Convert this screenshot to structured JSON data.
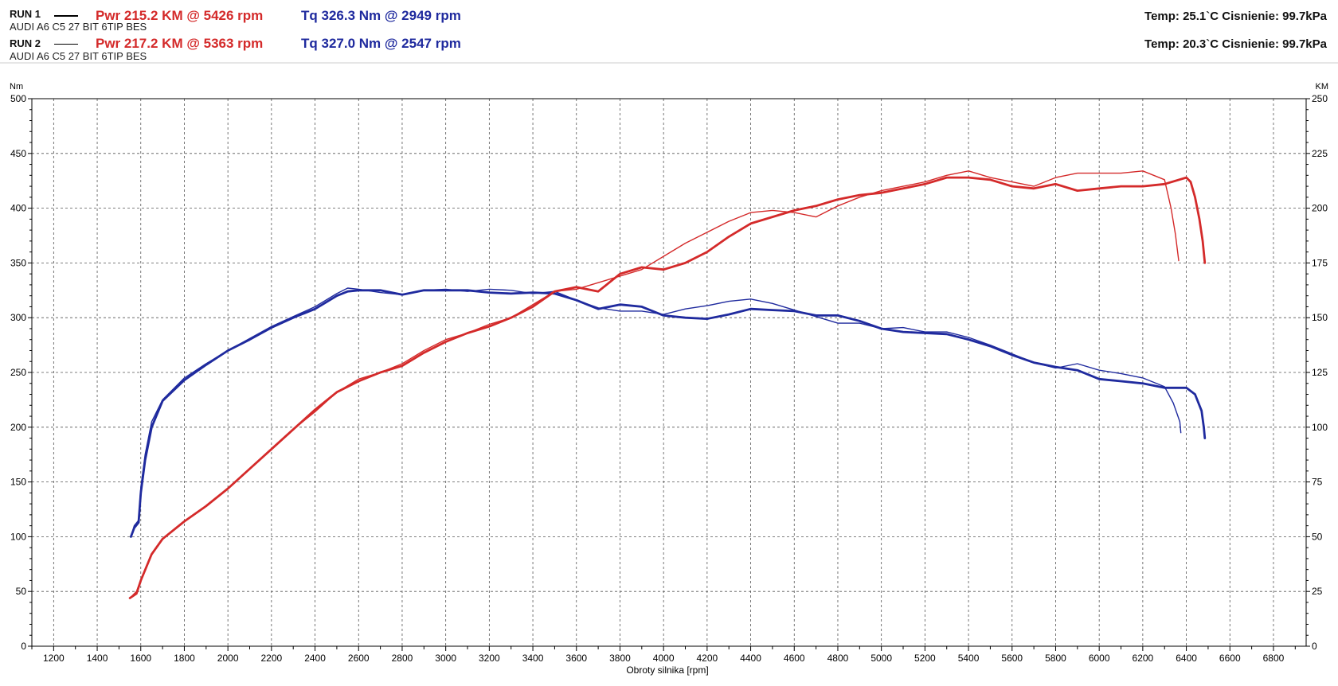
{
  "legend": {
    "run1": {
      "label": "RUN 1",
      "car": "AUDI A6 C5 27 BIT 6TIP BES",
      "power": "Pwr  215.2 KM @ 5426 rpm",
      "torque": "Tq 326.3 Nm @ 2949 rpm",
      "env": "Temp: 25.1`C   Cisnienie: 99.7kPa"
    },
    "run2": {
      "label": "RUN 2",
      "car": "AUDI A6 C5 27 BIT 6TIP BES",
      "power": "Pwr  217.2 KM @ 5363 rpm",
      "torque": "Tq 327.0 Nm @ 2547 rpm",
      "env": "Temp: 20.3`C   Cisnienie: 99.7kPa"
    }
  },
  "colors": {
    "power": "#d42a2a",
    "torque": "#1f2a9e",
    "grid": "#555555"
  },
  "chart_data": {
    "type": "line",
    "xlabel": "Obroty silnika [rpm]",
    "ylabel_left": "Nm",
    "ylabel_right": "KM",
    "xlim": [
      1100,
      6950
    ],
    "ylim_left": [
      0,
      500
    ],
    "ylim_right": [
      0,
      250
    ],
    "x_ticks": [
      1200,
      1400,
      1600,
      1800,
      2000,
      2200,
      2400,
      2600,
      2800,
      3000,
      3200,
      3400,
      3600,
      3800,
      4000,
      4200,
      4400,
      4600,
      4800,
      5000,
      5200,
      5400,
      5600,
      5800,
      6000,
      6200,
      6400,
      6600,
      6800
    ],
    "y_ticks_left": [
      0,
      50,
      100,
      150,
      200,
      250,
      300,
      350,
      400,
      450,
      500
    ],
    "y_ticks_right": [
      0,
      25,
      50,
      75,
      100,
      125,
      150,
      175,
      200,
      225,
      250
    ],
    "grid": true,
    "series": [
      {
        "name": "RUN 1",
        "quantity": "torque",
        "axis": "left",
        "points": [
          [
            1555,
            100
          ],
          [
            1570,
            110
          ],
          [
            1590,
            115
          ],
          [
            1600,
            145
          ],
          [
            1620,
            175
          ],
          [
            1650,
            205
          ],
          [
            1700,
            225
          ],
          [
            1800,
            245
          ],
          [
            1900,
            258
          ],
          [
            2000,
            270
          ],
          [
            2100,
            281
          ],
          [
            2200,
            292
          ],
          [
            2300,
            301
          ],
          [
            2400,
            310
          ],
          [
            2500,
            322
          ],
          [
            2550,
            327
          ],
          [
            2600,
            326
          ],
          [
            2700,
            323
          ],
          [
            2800,
            321
          ],
          [
            2900,
            325
          ],
          [
            3000,
            326
          ],
          [
            3100,
            324
          ],
          [
            3200,
            326
          ],
          [
            3300,
            325
          ],
          [
            3400,
            322
          ],
          [
            3500,
            324
          ],
          [
            3600,
            316
          ],
          [
            3700,
            309
          ],
          [
            3800,
            306
          ],
          [
            3900,
            306
          ],
          [
            4000,
            303
          ],
          [
            4100,
            308
          ],
          [
            4200,
            311
          ],
          [
            4300,
            315
          ],
          [
            4400,
            317
          ],
          [
            4500,
            313
          ],
          [
            4600,
            307
          ],
          [
            4700,
            301
          ],
          [
            4800,
            295
          ],
          [
            4900,
            295
          ],
          [
            5000,
            290
          ],
          [
            5100,
            291
          ],
          [
            5200,
            287
          ],
          [
            5300,
            287
          ],
          [
            5400,
            282
          ],
          [
            5500,
            275
          ],
          [
            5600,
            267
          ],
          [
            5700,
            259
          ],
          [
            5800,
            254
          ],
          [
            5900,
            258
          ],
          [
            6000,
            252
          ],
          [
            6100,
            249
          ],
          [
            6200,
            245
          ],
          [
            6300,
            237
          ],
          [
            6340,
            222
          ],
          [
            6370,
            205
          ],
          [
            6375,
            195
          ]
        ]
      },
      {
        "name": "RUN 2",
        "quantity": "torque",
        "axis": "left",
        "points": [
          [
            1555,
            100
          ],
          [
            1570,
            108
          ],
          [
            1590,
            113
          ],
          [
            1600,
            140
          ],
          [
            1620,
            170
          ],
          [
            1650,
            200
          ],
          [
            1700,
            224
          ],
          [
            1800,
            243
          ],
          [
            1900,
            257
          ],
          [
            2000,
            270
          ],
          [
            2100,
            280
          ],
          [
            2200,
            291
          ],
          [
            2300,
            300
          ],
          [
            2400,
            308
          ],
          [
            2500,
            320
          ],
          [
            2550,
            324
          ],
          [
            2600,
            325
          ],
          [
            2700,
            325
          ],
          [
            2800,
            321
          ],
          [
            2900,
            325
          ],
          [
            3000,
            325
          ],
          [
            3100,
            325
          ],
          [
            3200,
            323
          ],
          [
            3300,
            322
          ],
          [
            3400,
            323
          ],
          [
            3500,
            322
          ],
          [
            3600,
            316
          ],
          [
            3700,
            308
          ],
          [
            3800,
            312
          ],
          [
            3900,
            310
          ],
          [
            4000,
            302
          ],
          [
            4100,
            300
          ],
          [
            4200,
            299
          ],
          [
            4300,
            303
          ],
          [
            4400,
            308
          ],
          [
            4500,
            307
          ],
          [
            4600,
            306
          ],
          [
            4700,
            302
          ],
          [
            4800,
            302
          ],
          [
            4900,
            297
          ],
          [
            5000,
            290
          ],
          [
            5100,
            287
          ],
          [
            5200,
            286
          ],
          [
            5300,
            285
          ],
          [
            5400,
            280
          ],
          [
            5500,
            274
          ],
          [
            5600,
            266
          ],
          [
            5700,
            259
          ],
          [
            5800,
            255
          ],
          [
            5900,
            252
          ],
          [
            6000,
            244
          ],
          [
            6100,
            242
          ],
          [
            6200,
            240
          ],
          [
            6300,
            236
          ],
          [
            6400,
            236
          ],
          [
            6440,
            230
          ],
          [
            6470,
            215
          ],
          [
            6480,
            200
          ],
          [
            6485,
            190
          ]
        ]
      },
      {
        "name": "RUN 1",
        "quantity": "power",
        "axis": "right",
        "points": [
          [
            1550,
            22
          ],
          [
            1580,
            25
          ],
          [
            1600,
            30
          ],
          [
            1650,
            42
          ],
          [
            1700,
            49
          ],
          [
            1800,
            57
          ],
          [
            1900,
            64
          ],
          [
            2000,
            72
          ],
          [
            2100,
            81
          ],
          [
            2200,
            90
          ],
          [
            2300,
            99
          ],
          [
            2400,
            107
          ],
          [
            2500,
            116
          ],
          [
            2600,
            122
          ],
          [
            2700,
            125
          ],
          [
            2800,
            129
          ],
          [
            2900,
            135
          ],
          [
            3000,
            140
          ],
          [
            3100,
            143
          ],
          [
            3200,
            147
          ],
          [
            3300,
            150
          ],
          [
            3400,
            156
          ],
          [
            3500,
            162
          ],
          [
            3600,
            163
          ],
          [
            3700,
            166
          ],
          [
            3800,
            169
          ],
          [
            3900,
            172
          ],
          [
            4000,
            178
          ],
          [
            4100,
            184
          ],
          [
            4200,
            189
          ],
          [
            4300,
            194
          ],
          [
            4400,
            198
          ],
          [
            4500,
            199
          ],
          [
            4600,
            198
          ],
          [
            4700,
            196
          ],
          [
            4800,
            201
          ],
          [
            4900,
            205
          ],
          [
            5000,
            208
          ],
          [
            5100,
            210
          ],
          [
            5200,
            212
          ],
          [
            5300,
            215
          ],
          [
            5400,
            217
          ],
          [
            5500,
            214
          ],
          [
            5600,
            212
          ],
          [
            5700,
            210
          ],
          [
            5800,
            214
          ],
          [
            5900,
            216
          ],
          [
            6000,
            216
          ],
          [
            6100,
            216
          ],
          [
            6200,
            217
          ],
          [
            6300,
            213
          ],
          [
            6330,
            200
          ],
          [
            6350,
            188
          ],
          [
            6365,
            176
          ]
        ]
      },
      {
        "name": "RUN 2",
        "quantity": "power",
        "axis": "right",
        "points": [
          [
            1550,
            22
          ],
          [
            1580,
            24
          ],
          [
            1600,
            30
          ],
          [
            1650,
            42
          ],
          [
            1700,
            49
          ],
          [
            1800,
            57
          ],
          [
            1900,
            64
          ],
          [
            2000,
            72
          ],
          [
            2100,
            81
          ],
          [
            2200,
            90
          ],
          [
            2300,
            99
          ],
          [
            2400,
            108
          ],
          [
            2500,
            116
          ],
          [
            2600,
            121
          ],
          [
            2700,
            125
          ],
          [
            2800,
            128
          ],
          [
            2900,
            134
          ],
          [
            3000,
            139
          ],
          [
            3100,
            143
          ],
          [
            3200,
            146
          ],
          [
            3300,
            150
          ],
          [
            3400,
            155
          ],
          [
            3500,
            162
          ],
          [
            3600,
            164
          ],
          [
            3700,
            162
          ],
          [
            3800,
            170
          ],
          [
            3900,
            173
          ],
          [
            4000,
            172
          ],
          [
            4100,
            175
          ],
          [
            4200,
            180
          ],
          [
            4300,
            187
          ],
          [
            4400,
            193
          ],
          [
            4500,
            196
          ],
          [
            4600,
            199
          ],
          [
            4700,
            201
          ],
          [
            4800,
            204
          ],
          [
            4900,
            206
          ],
          [
            5000,
            207
          ],
          [
            5100,
            209
          ],
          [
            5200,
            211
          ],
          [
            5300,
            214
          ],
          [
            5400,
            214
          ],
          [
            5500,
            213
          ],
          [
            5600,
            210
          ],
          [
            5700,
            209
          ],
          [
            5800,
            211
          ],
          [
            5900,
            208
          ],
          [
            6000,
            209
          ],
          [
            6100,
            210
          ],
          [
            6200,
            210
          ],
          [
            6300,
            211
          ],
          [
            6400,
            214
          ],
          [
            6420,
            212
          ],
          [
            6440,
            205
          ],
          [
            6460,
            195
          ],
          [
            6475,
            185
          ],
          [
            6485,
            175
          ]
        ]
      }
    ]
  }
}
